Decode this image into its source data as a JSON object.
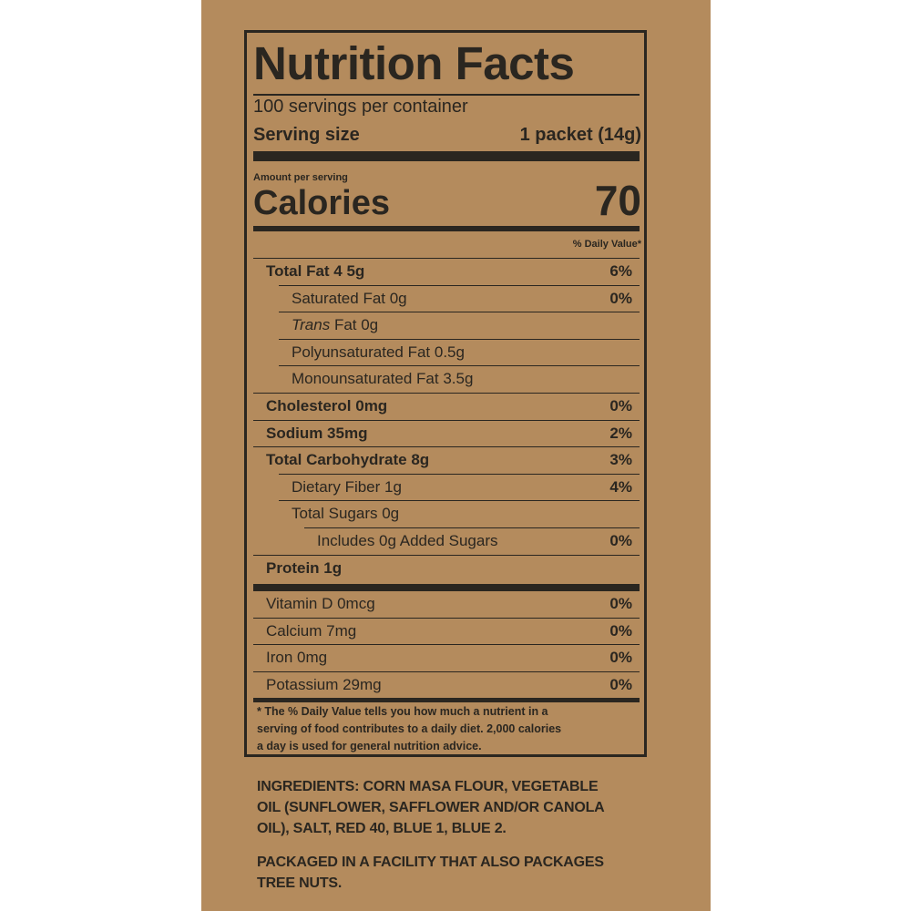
{
  "label": {
    "title": "Nutrition Facts",
    "servings": "100 servings per container",
    "serving_size_label": "Serving size",
    "serving_size_value": "1 packet (14g)",
    "amount_per_serving": "Amount per serving",
    "calories_label": "Calories",
    "calories_value": "70",
    "dv_header": "% Daily Value*",
    "nutrients": [
      {
        "label": "Total Fat 4 5g",
        "dv": "6%"
      },
      {
        "label": "Saturated Fat 0g",
        "dv": "0%"
      },
      {
        "label": [
          "Trans",
          "Fat 0g"
        ]
      },
      {
        "label": "Polyunsaturated Fat 0.5g"
      },
      {
        "label": "Monounsaturated Fat 3.5g"
      },
      {
        "label": "Cholesterol 0mg",
        "dv": "0%"
      },
      {
        "label": "Sodium 35mg",
        "dv": "2%"
      },
      {
        "label": "Total Carbohydrate 8g",
        "dv": "3%"
      },
      {
        "label": "Dietary Fiber 1g",
        "dv": "4%"
      },
      {
        "label": "Total Sugars 0g"
      },
      {
        "label": "Includes 0g Added Sugars",
        "dv": "0%"
      },
      {
        "label": "Protein 1g"
      }
    ],
    "vitamins": [
      {
        "label": "Vitamin D 0mcg",
        "dv": "0%"
      },
      {
        "label": "Calcium 7mg",
        "dv": "0%"
      },
      {
        "label": "Iron 0mg",
        "dv": "0%"
      },
      {
        "label": "Potassium 29mg",
        "dv": "0%"
      }
    ],
    "footnote": [
      "* The % Daily Value tells you how much a nutrient in a",
      "serving of food contributes to a daily diet. 2,000 calories",
      "a day is used for general nutrition advice."
    ]
  },
  "ingredients": [
    "INGREDIENTS: CORN MASA FLOUR, VEGETABLE",
    "OIL (SUNFLOWER, SAFFLOWER AND/OR CANOLA",
    "OIL), SALT, RED 40, BLUE 1, BLUE 2."
  ],
  "allergen": [
    "PACKAGED IN A FACILITY THAT ALSO PACKAGES",
    "TREE NUTS."
  ]
}
